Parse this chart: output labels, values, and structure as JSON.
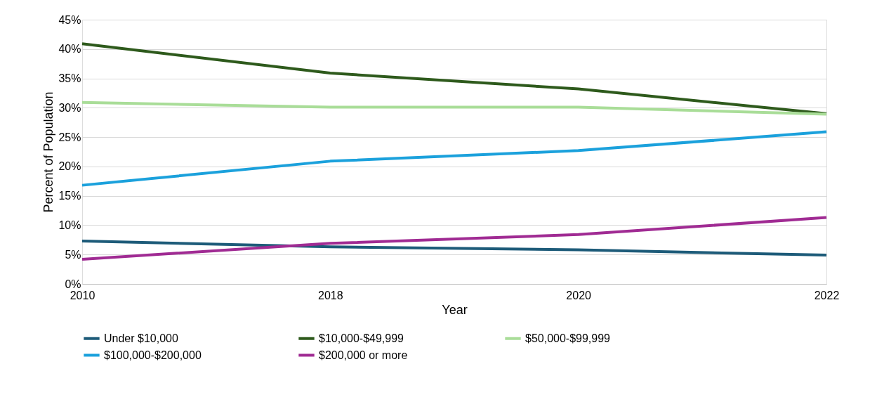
{
  "chart_data": {
    "type": "line",
    "xlabel": "Year",
    "ylabel": "Percent of Population",
    "categories": [
      "2010",
      "2018",
      "2020",
      "2022"
    ],
    "series": [
      {
        "name": "Under $10,000",
        "color": "#1d5b79",
        "values": [
          7.3,
          6.3,
          5.8,
          4.9
        ]
      },
      {
        "name": "$10,000-$49,999",
        "color": "#2e5a1c",
        "values": [
          40.9,
          35.9,
          33.2,
          29.0
        ]
      },
      {
        "name": "$50,000-$99,999",
        "color": "#a9dd98",
        "values": [
          30.9,
          30.1,
          30.1,
          28.9
        ]
      },
      {
        "name": "$100,000-$200,000",
        "color": "#1ba1dc",
        "values": [
          16.8,
          20.9,
          22.7,
          25.9
        ]
      },
      {
        "name": "$200,000 or more",
        "color": "#a02b93",
        "values": [
          4.2,
          6.9,
          8.4,
          11.3
        ]
      }
    ],
    "ylim": [
      0,
      45
    ],
    "yticks": [
      {
        "value": 0,
        "label": "0%"
      },
      {
        "value": 5,
        "label": "5%"
      },
      {
        "value": 10,
        "label": "10%"
      },
      {
        "value": 15,
        "label": "15%"
      },
      {
        "value": 20,
        "label": "20%"
      },
      {
        "value": 25,
        "label": "25%"
      },
      {
        "value": 30,
        "label": "30%"
      },
      {
        "value": 35,
        "label": "35%"
      },
      {
        "value": 40,
        "label": "40%"
      },
      {
        "value": 45,
        "label": "45%"
      }
    ],
    "grid": "y",
    "legend": "bottom",
    "marker": "none",
    "line_style": "solid"
  }
}
